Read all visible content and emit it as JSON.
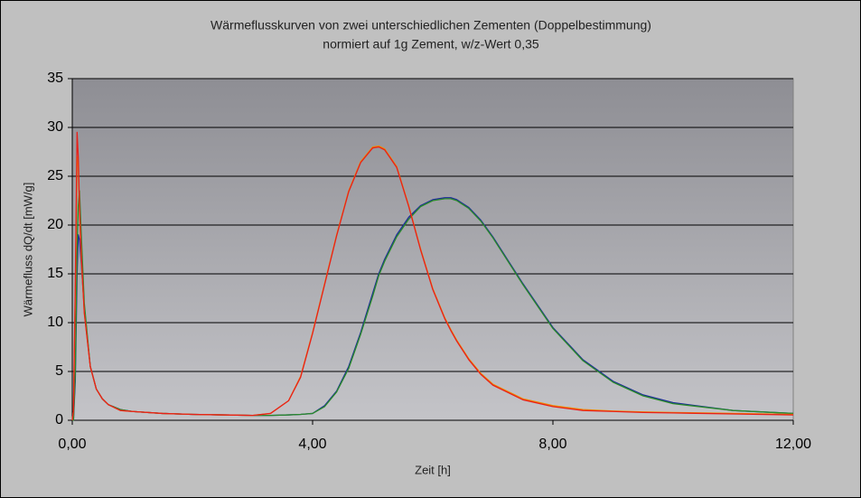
{
  "chart_data": {
    "type": "line",
    "title": "Wärmeflusskurven von zwei unterschiedlichen Zementen (Doppelbestimmung)",
    "subtitle": "normiert auf 1g Zement, w/z-Wert 0,35",
    "x_label": "Zeit [h]",
    "y_label": "Wärmefluss dQ/dt [mW/g]",
    "xlim": [
      0,
      12
    ],
    "ylim": [
      0,
      35
    ],
    "xticks": [
      {
        "value": 0,
        "label": "0,00"
      },
      {
        "value": 4,
        "label": "4,00"
      },
      {
        "value": 8,
        "label": "8,00"
      },
      {
        "value": 12,
        "label": "12,00"
      }
    ],
    "yticks": [
      0,
      5,
      10,
      15,
      20,
      25,
      30,
      35
    ],
    "grid": true,
    "x": [
      0,
      0.02,
      0.05,
      0.08,
      0.1,
      0.12,
      0.15,
      0.2,
      0.3,
      0.4,
      0.5,
      0.6,
      0.8,
      1.0,
      1.5,
      2.0,
      2.5,
      3.0,
      3.3,
      3.6,
      3.8,
      4.0,
      4.2,
      4.4,
      4.6,
      4.8,
      5.0,
      5.1,
      5.2,
      5.4,
      5.6,
      5.8,
      6.0,
      6.2,
      6.3,
      6.4,
      6.6,
      6.8,
      7.0,
      7.5,
      8.0,
      8.5,
      9.0,
      9.5,
      10.0,
      11.0,
      12.0
    ],
    "series": [
      {
        "color": "#1c2a9c",
        "values": [
          0,
          0,
          4,
          15,
          19,
          18.5,
          16,
          11.5,
          5.5,
          3.2,
          2.2,
          1.6,
          1.1,
          0.9,
          0.7,
          0.6,
          0.55,
          0.5,
          0.5,
          0.55,
          0.6,
          0.7,
          1.5,
          3,
          5.5,
          9,
          13,
          15,
          16.5,
          19,
          20.8,
          22,
          22.6,
          22.8,
          22.8,
          22.6,
          21.8,
          20.5,
          18.8,
          14,
          9.5,
          6.2,
          4.0,
          2.6,
          1.8,
          1.0,
          0.7
        ]
      },
      {
        "color": "#2a8a2a",
        "values": [
          0,
          0,
          5,
          18,
          22,
          23.5,
          19,
          12,
          5.5,
          3.2,
          2.2,
          1.6,
          1.1,
          0.9,
          0.7,
          0.6,
          0.55,
          0.5,
          0.5,
          0.55,
          0.6,
          0.7,
          1.4,
          2.9,
          5.3,
          8.8,
          12.7,
          14.8,
          16.3,
          18.8,
          20.6,
          21.9,
          22.5,
          22.7,
          22.7,
          22.5,
          21.7,
          20.4,
          18.7,
          13.9,
          9.4,
          6.1,
          3.9,
          2.5,
          1.7,
          1.0,
          0.7
        ]
      },
      {
        "color": "#f08a00",
        "values": [
          0,
          1,
          13,
          27,
          26,
          21.5,
          16.5,
          11,
          5.5,
          3.2,
          2.2,
          1.6,
          1.0,
          0.9,
          0.7,
          0.6,
          0.55,
          0.5,
          0.7,
          2,
          4.5,
          9,
          14,
          19,
          23.5,
          26.5,
          28,
          28.1,
          27.8,
          26,
          22,
          17.5,
          13.5,
          10.5,
          9.3,
          8.2,
          6.3,
          4.8,
          3.7,
          2.2,
          1.5,
          1.1,
          0.95,
          0.85,
          0.8,
          0.7,
          0.6
        ]
      },
      {
        "color": "#e8201a",
        "values": [
          0,
          1,
          14,
          29.5,
          27,
          22,
          17,
          11,
          5.5,
          3.2,
          2.2,
          1.6,
          1.0,
          0.9,
          0.7,
          0.6,
          0.55,
          0.5,
          0.7,
          2,
          4.4,
          8.9,
          13.9,
          18.9,
          23.4,
          26.4,
          27.9,
          28.0,
          27.7,
          25.9,
          21.9,
          17.4,
          13.4,
          10.4,
          9.2,
          8.1,
          6.2,
          4.7,
          3.6,
          2.1,
          1.4,
          1.0,
          0.9,
          0.8,
          0.75,
          0.65,
          0.55
        ]
      }
    ]
  }
}
